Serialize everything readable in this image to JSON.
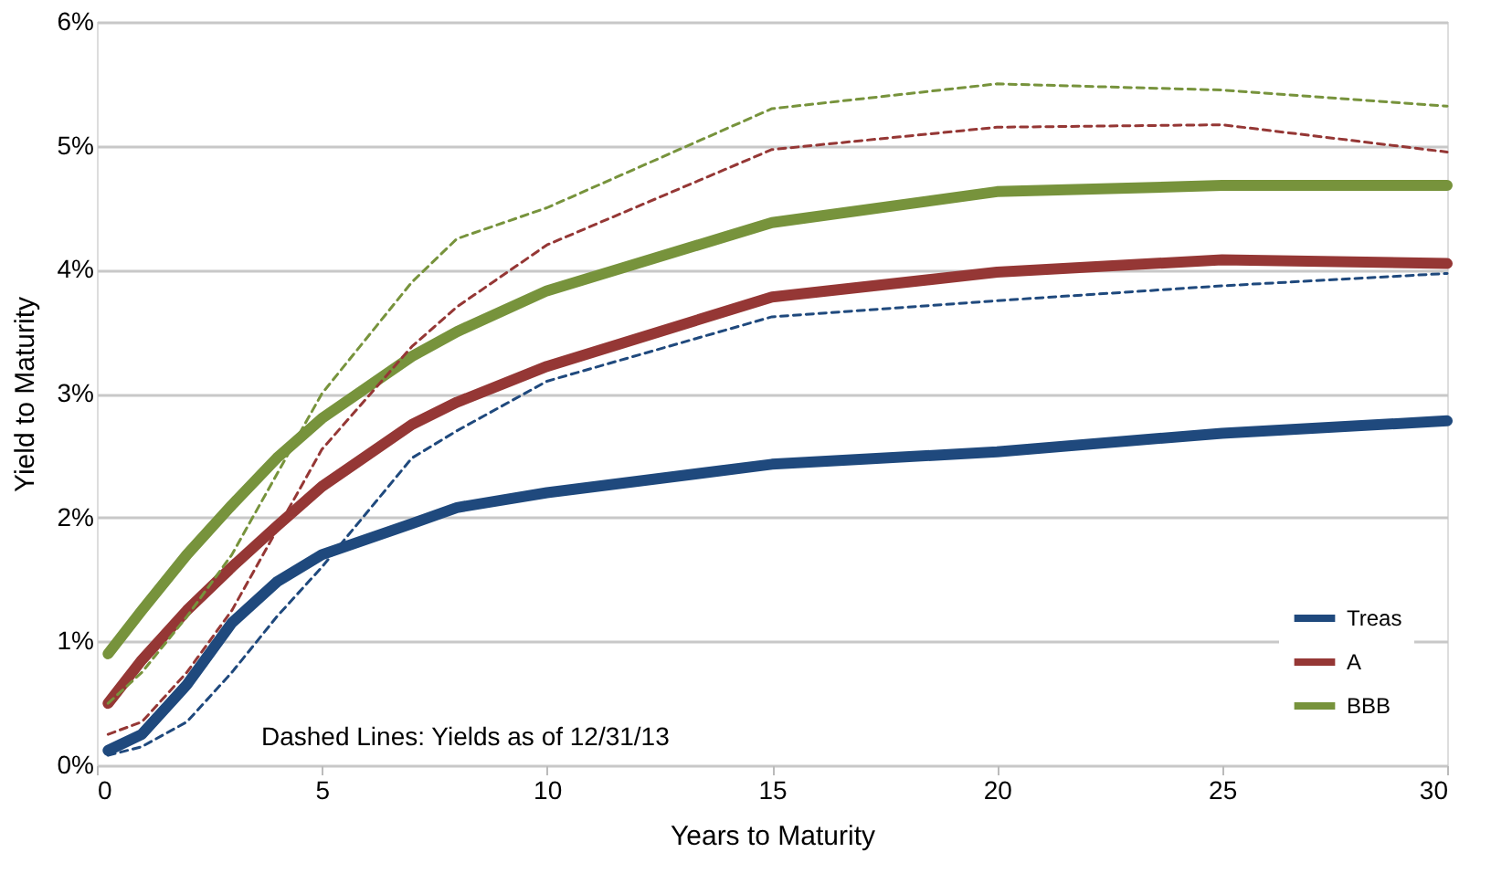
{
  "chart_data": {
    "type": "line",
    "xlabel": "Years to Maturity",
    "ylabel": "Yield to Maturity",
    "x": [
      0.25,
      1,
      2,
      3,
      4,
      5,
      7,
      8,
      10,
      15,
      20,
      25,
      30
    ],
    "series": [
      {
        "name": "Treas",
        "color": "#1f497d",
        "line_style": "solid",
        "values": [
          0.12,
          0.25,
          0.65,
          1.15,
          1.48,
          1.7,
          1.95,
          2.08,
          2.2,
          2.43,
          2.53,
          2.68,
          2.78
        ]
      },
      {
        "name": "A",
        "color": "#953735",
        "line_style": "solid",
        "values": [
          0.5,
          0.85,
          1.25,
          1.6,
          1.93,
          2.25,
          2.75,
          2.93,
          3.22,
          3.78,
          3.98,
          4.08,
          4.05
        ]
      },
      {
        "name": "BBB",
        "color": "#77933c",
        "line_style": "solid",
        "values": [
          0.9,
          1.25,
          1.7,
          2.1,
          2.48,
          2.8,
          3.3,
          3.5,
          3.83,
          4.38,
          4.63,
          4.68,
          4.68
        ]
      },
      {
        "color": "#1f497d",
        "line_style": "dashed",
        "values": [
          0.08,
          0.15,
          0.35,
          0.75,
          1.2,
          1.6,
          2.48,
          2.7,
          3.1,
          3.62,
          3.75,
          3.87,
          3.97
        ]
      },
      {
        "color": "#953735",
        "line_style": "dashed",
        "values": [
          0.25,
          0.35,
          0.75,
          1.25,
          1.9,
          2.55,
          3.38,
          3.7,
          4.2,
          4.97,
          5.15,
          5.17,
          4.95
        ]
      },
      {
        "color": "#77933c",
        "line_style": "dashed",
        "values": [
          0.5,
          0.75,
          1.2,
          1.7,
          2.35,
          3.0,
          3.9,
          4.25,
          4.5,
          5.3,
          5.5,
          5.45,
          5.32
        ]
      }
    ],
    "xlim": [
      0,
      30
    ],
    "xticks": [
      0,
      5,
      10,
      15,
      20,
      25,
      30
    ],
    "ylim": [
      0,
      6
    ],
    "yticks": [
      {
        "value": 0,
        "label": "0%"
      },
      {
        "value": 1,
        "label": "1%"
      },
      {
        "value": 2,
        "label": "2%"
      },
      {
        "value": 3,
        "label": "3%"
      },
      {
        "value": 4,
        "label": "4%"
      },
      {
        "value": 5,
        "label": "5%"
      },
      {
        "value": 6,
        "label": "6%"
      }
    ],
    "grid": "y",
    "legend": "bottom right",
    "marker": "none",
    "annotations": [
      "Dashed Lines: Yields as of 12/31/13"
    ]
  }
}
